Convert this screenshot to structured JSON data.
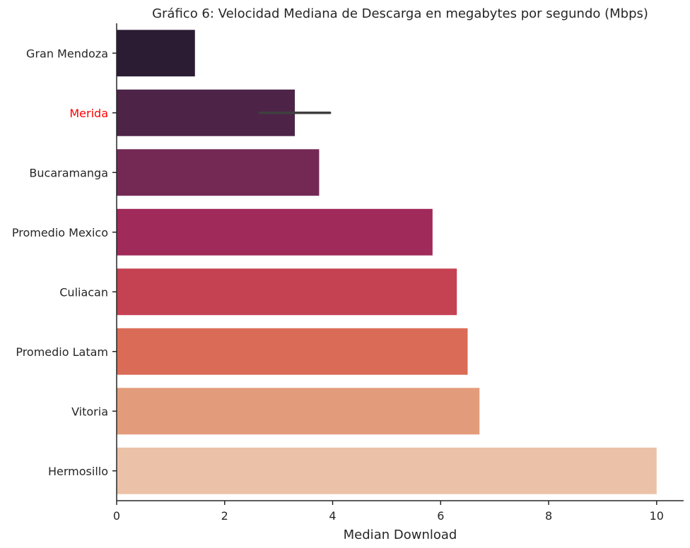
{
  "chart_data": {
    "type": "bar",
    "orientation": "horizontal",
    "title": "Gráfico 6: Velocidad Mediana de Descarga en megabytes por segundo (Mbps)",
    "xlabel": "Median Download",
    "ylabel": "",
    "xlim": [
      0,
      10.5
    ],
    "xticks": [
      0,
      2,
      4,
      6,
      8,
      10
    ],
    "grid": false,
    "categories": [
      "Gran Mendoza",
      "Merida",
      "Bucaramanga",
      "Promedio Mexico",
      "Culiacan",
      "Promedio Latam",
      "Vitoria",
      "Hermosillo"
    ],
    "values": [
      1.45,
      3.3,
      3.75,
      5.85,
      6.3,
      6.5,
      6.72,
      10.0
    ],
    "colors": [
      "#2b1b33",
      "#4d2447",
      "#742955",
      "#a02a5a",
      "#c54253",
      "#da6c57",
      "#e39c7b",
      "#ebc2a8"
    ],
    "highlight": {
      "category": "Merida",
      "label_color": "#ff0000"
    },
    "error_bars": [
      {
        "category": "Merida",
        "low": 2.65,
        "high": 3.95
      }
    ]
  }
}
